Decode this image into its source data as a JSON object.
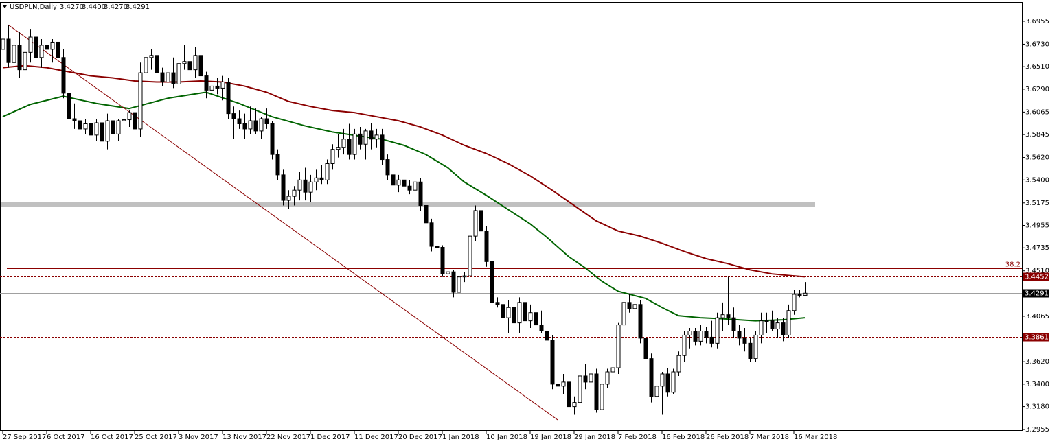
{
  "chart_data": {
    "type": "candlestick",
    "title": "USDPLN,Daily",
    "header_quote": [
      {
        "value": 3.427,
        "label": "3.4270"
      },
      {
        "value": 3.44,
        "label": "3.4400"
      },
      {
        "value": 3.427,
        "label": "3.4270"
      },
      3.4291
    ],
    "categories": [
      "27 Sep 2017",
      null,
      null,
      null,
      null,
      null,
      null,
      null,
      "6 Oct 2017",
      null,
      null,
      null,
      null,
      null,
      null,
      null,
      "16 Oct 2017",
      null,
      null,
      null,
      null,
      null,
      null,
      null,
      "25 Oct 2017",
      null,
      null,
      null,
      null,
      null,
      null,
      null,
      "3 Nov 2017",
      null,
      null,
      null,
      null,
      null,
      null,
      null,
      "13 Nov 2017",
      null,
      null,
      null,
      null,
      null,
      null,
      null,
      "22 Nov 2017",
      null,
      null,
      null,
      null,
      null,
      null,
      null,
      "1 Dec 2017",
      null,
      null,
      null,
      null,
      null,
      null,
      null,
      "11 Dec 2017",
      null,
      null,
      null,
      null,
      null,
      null,
      null,
      "20 Dec 2017",
      null,
      null,
      null,
      null,
      null,
      null,
      null,
      "1 Jan 2018",
      null,
      null,
      null,
      null,
      null,
      null,
      null,
      "10 Jan 2018",
      null,
      null,
      null,
      null,
      null,
      null,
      null,
      "19 Jan 2018",
      null,
      null,
      null,
      null,
      null,
      null,
      null,
      "29 Jan 2018",
      null,
      null,
      null,
      null,
      null,
      null,
      null,
      "7 Feb 2018",
      null,
      null,
      null,
      null,
      null,
      null,
      null,
      "16 Feb 2018",
      null,
      null,
      null,
      null,
      null,
      null,
      null,
      "26 Feb 2018",
      null,
      null,
      null,
      null,
      null,
      null,
      null,
      "7 Mar 2018",
      null,
      null,
      null,
      null,
      null,
      null,
      null,
      "16 Mar 2018",
      null,
      null
    ],
    "ohlc": [
      [
        3.668,
        3.688,
        3.64,
        3.678
      ],
      [
        3.678,
        3.692,
        3.65,
        3.655
      ],
      [
        3.655,
        3.68,
        3.648,
        3.672
      ],
      [
        3.672,
        3.685,
        3.64,
        3.648
      ],
      [
        3.648,
        3.672,
        3.642,
        3.665
      ],
      [
        3.665,
        3.688,
        3.655,
        3.68
      ],
      [
        3.68,
        3.686,
        3.655,
        3.66
      ],
      [
        3.66,
        3.678,
        3.65,
        3.672
      ],
      [
        3.672,
        3.694,
        3.66,
        3.668
      ],
      [
        3.668,
        3.678,
        3.655,
        3.675
      ],
      [
        3.675,
        3.68,
        3.65,
        3.66
      ],
      [
        3.66,
        3.668,
        3.62,
        3.625
      ],
      [
        3.625,
        3.632,
        3.595,
        3.6
      ],
      [
        3.6,
        3.615,
        3.59,
        3.598
      ],
      [
        3.598,
        3.606,
        3.578,
        3.59
      ],
      [
        3.59,
        3.6,
        3.585,
        3.595
      ],
      [
        3.595,
        3.602,
        3.578,
        3.584
      ],
      [
        3.584,
        3.6,
        3.578,
        3.596
      ],
      [
        3.596,
        3.602,
        3.574,
        3.578
      ],
      [
        3.578,
        3.605,
        3.57,
        3.598
      ],
      [
        3.598,
        3.605,
        3.575,
        3.585
      ],
      [
        3.585,
        3.6,
        3.578,
        3.598
      ],
      [
        3.598,
        3.61,
        3.59,
        3.599
      ],
      [
        3.599,
        3.608,
        3.592,
        3.606
      ],
      [
        3.606,
        3.615,
        3.585,
        3.59
      ],
      [
        3.59,
        3.655,
        3.582,
        3.645
      ],
      [
        3.645,
        3.672,
        3.64,
        3.66
      ],
      [
        3.66,
        3.668,
        3.648,
        3.662
      ],
      [
        3.662,
        3.664,
        3.64,
        3.645
      ],
      [
        3.645,
        3.65,
        3.632,
        3.636
      ],
      [
        3.636,
        3.655,
        3.628,
        3.645
      ],
      [
        3.645,
        3.66,
        3.63,
        3.634
      ],
      [
        3.634,
        3.66,
        3.63,
        3.654
      ],
      [
        3.654,
        3.672,
        3.648,
        3.656
      ],
      [
        3.656,
        3.666,
        3.644,
        3.648
      ],
      [
        3.648,
        3.67,
        3.64,
        3.662
      ],
      [
        3.662,
        3.668,
        3.64,
        3.642
      ],
      [
        3.642,
        3.646,
        3.62,
        3.628
      ],
      [
        3.628,
        3.64,
        3.62,
        3.632
      ],
      [
        3.632,
        3.64,
        3.624,
        3.63
      ],
      [
        3.63,
        3.642,
        3.618,
        3.636
      ],
      [
        3.636,
        3.64,
        3.6,
        3.605
      ],
      [
        3.605,
        3.612,
        3.58,
        3.6
      ],
      [
        3.6,
        3.608,
        3.59,
        3.595
      ],
      [
        3.595,
        3.605,
        3.58,
        3.59
      ],
      [
        3.59,
        3.612,
        3.585,
        3.598
      ],
      [
        3.598,
        3.61,
        3.585,
        3.588
      ],
      [
        3.588,
        3.602,
        3.58,
        3.6
      ],
      [
        3.6,
        3.61,
        3.59,
        3.595
      ],
      [
        3.595,
        3.598,
        3.56,
        3.565
      ],
      [
        3.565,
        3.57,
        3.54,
        3.545
      ],
      [
        3.545,
        3.55,
        3.515,
        3.52
      ],
      [
        3.52,
        3.53,
        3.512,
        3.524
      ],
      [
        3.524,
        3.534,
        3.515,
        3.53
      ],
      [
        3.53,
        3.548,
        3.52,
        3.54
      ],
      [
        3.54,
        3.552,
        3.52,
        3.528
      ],
      [
        3.528,
        3.545,
        3.518,
        3.538
      ],
      [
        3.538,
        3.55,
        3.53,
        3.542
      ],
      [
        3.542,
        3.555,
        3.536,
        3.54
      ],
      [
        3.54,
        3.56,
        3.536,
        3.556
      ],
      [
        3.556,
        3.575,
        3.55,
        3.57
      ],
      [
        3.57,
        3.585,
        3.562,
        3.572
      ],
      [
        3.572,
        3.59,
        3.565,
        3.58
      ],
      [
        3.58,
        3.595,
        3.56,
        3.565
      ],
      [
        3.565,
        3.59,
        3.56,
        3.585
      ],
      [
        3.585,
        3.592,
        3.57,
        3.575
      ],
      [
        3.575,
        3.59,
        3.56,
        3.588
      ],
      [
        3.588,
        3.596,
        3.57,
        3.58
      ],
      [
        3.58,
        3.59,
        3.572,
        3.584
      ],
      [
        3.584,
        3.59,
        3.555,
        3.56
      ],
      [
        3.56,
        3.565,
        3.54,
        3.545
      ],
      [
        3.545,
        3.55,
        3.525,
        3.535
      ],
      [
        3.535,
        3.545,
        3.528,
        3.54
      ],
      [
        3.54,
        3.545,
        3.53,
        3.534
      ],
      [
        3.534,
        3.54,
        3.526,
        3.53
      ],
      [
        3.53,
        3.545,
        3.528,
        3.538
      ],
      [
        3.538,
        3.542,
        3.51,
        3.515
      ],
      [
        3.515,
        3.52,
        3.495,
        3.498
      ],
      [
        3.498,
        3.502,
        3.47,
        3.475
      ],
      [
        3.475,
        3.48,
        3.47,
        3.474
      ],
      [
        3.474,
        3.476,
        3.445,
        3.448
      ],
      [
        3.448,
        3.455,
        3.44,
        3.45
      ],
      [
        3.45,
        3.452,
        3.425,
        3.43
      ],
      [
        3.43,
        3.45,
        3.425,
        3.445
      ],
      [
        3.445,
        3.45,
        3.44,
        3.446
      ],
      [
        3.446,
        3.49,
        3.44,
        3.485
      ],
      [
        3.485,
        3.515,
        3.48,
        3.51
      ],
      [
        3.51,
        3.515,
        3.485,
        3.49
      ],
      [
        3.49,
        3.495,
        3.455,
        3.46
      ],
      [
        3.46,
        3.462,
        3.415,
        3.42
      ],
      [
        3.42,
        3.425,
        3.415,
        3.418
      ],
      [
        3.418,
        3.428,
        3.4,
        3.405
      ],
      [
        3.405,
        3.422,
        3.39,
        3.415
      ],
      [
        3.415,
        3.42,
        3.395,
        3.4
      ],
      [
        3.4,
        3.425,
        3.39,
        3.42
      ],
      [
        3.42,
        3.425,
        3.398,
        3.402
      ],
      [
        3.402,
        3.418,
        3.395,
        3.41
      ],
      [
        3.41,
        3.415,
        3.395,
        3.398
      ],
      [
        3.398,
        3.412,
        3.39,
        3.392
      ],
      [
        3.392,
        3.395,
        3.38,
        3.383
      ],
      [
        3.383,
        3.388,
        3.335,
        3.34
      ],
      [
        3.34,
        3.345,
        3.305,
        3.338
      ],
      [
        3.338,
        3.35,
        3.33,
        3.342
      ],
      [
        3.342,
        3.35,
        3.312,
        3.318
      ],
      [
        3.318,
        3.328,
        3.31,
        3.322
      ],
      [
        3.322,
        3.352,
        3.318,
        3.348
      ],
      [
        3.348,
        3.36,
        3.335,
        3.342
      ],
      [
        3.342,
        3.358,
        3.33,
        3.35
      ],
      [
        3.35,
        3.355,
        3.312,
        3.315
      ],
      [
        3.315,
        3.345,
        3.312,
        3.34
      ],
      [
        3.34,
        3.355,
        3.336,
        3.352
      ],
      [
        3.352,
        3.362,
        3.345,
        3.356
      ],
      [
        3.356,
        3.4,
        3.35,
        3.398
      ],
      [
        3.398,
        3.425,
        3.392,
        3.42
      ],
      [
        3.42,
        3.428,
        3.41,
        3.414
      ],
      [
        3.414,
        3.43,
        3.408,
        3.418
      ],
      [
        3.418,
        3.422,
        3.38,
        3.385
      ],
      [
        3.385,
        3.392,
        3.36,
        3.365
      ],
      [
        3.365,
        3.37,
        3.322,
        3.328
      ],
      [
        3.328,
        3.34,
        3.318,
        3.338
      ],
      [
        3.338,
        3.352,
        3.31,
        3.35
      ],
      [
        3.35,
        3.356,
        3.328,
        3.332
      ],
      [
        3.332,
        3.355,
        3.33,
        3.352
      ],
      [
        3.352,
        3.372,
        3.348,
        3.368
      ],
      [
        3.368,
        3.392,
        3.362,
        3.388
      ],
      [
        3.388,
        3.395,
        3.375,
        3.392
      ],
      [
        3.392,
        3.395,
        3.378,
        3.382
      ],
      [
        3.382,
        3.398,
        3.378,
        3.392
      ],
      [
        3.392,
        3.396,
        3.38,
        3.386
      ],
      [
        3.386,
        3.402,
        3.376,
        3.38
      ],
      [
        3.38,
        3.41,
        3.375,
        3.405
      ],
      [
        3.405,
        3.42,
        3.392,
        3.408
      ],
      [
        3.408,
        3.445,
        3.398,
        3.405
      ],
      [
        3.405,
        3.415,
        3.385,
        3.392
      ],
      [
        3.392,
        3.398,
        3.378,
        3.385
      ],
      [
        3.385,
        3.395,
        3.372,
        3.38
      ],
      [
        3.38,
        3.385,
        3.362,
        3.365
      ],
      [
        3.365,
        3.392,
        3.362,
        3.388
      ],
      [
        3.388,
        3.41,
        3.38,
        3.402
      ],
      [
        3.402,
        3.41,
        3.39,
        3.402
      ],
      [
        3.402,
        3.412,
        3.392,
        3.394
      ],
      [
        3.394,
        3.405,
        3.385,
        3.4
      ],
      [
        3.4,
        3.405,
        3.382,
        3.388
      ],
      [
        3.388,
        3.418,
        3.385,
        3.412
      ],
      [
        3.412,
        3.432,
        3.408,
        3.428
      ],
      [
        3.428,
        3.432,
        3.425,
        3.427
      ],
      [
        3.427,
        3.44,
        3.427,
        3.4291
      ]
    ],
    "up_color": "#ffffff",
    "down_color": "#000000",
    "lines": [
      {
        "color": "#8b0000",
        "x": [
          0,
          4,
          8,
          12,
          16,
          20,
          24,
          28,
          32,
          36,
          40,
          44,
          48,
          52,
          56,
          60,
          64,
          68,
          72,
          76,
          80,
          84,
          88,
          92,
          96,
          100,
          104,
          108,
          112,
          116,
          120,
          124,
          128,
          132,
          136,
          140,
          144,
          146
        ],
        "values": [
          3.65,
          3.652,
          3.65,
          3.646,
          3.642,
          3.64,
          3.637,
          3.636,
          3.636,
          3.637,
          3.636,
          3.632,
          3.626,
          3.617,
          3.612,
          3.608,
          3.606,
          3.602,
          3.598,
          3.592,
          3.584,
          3.574,
          3.566,
          3.556,
          3.544,
          3.53,
          3.515,
          3.5,
          3.49,
          3.485,
          3.478,
          3.47,
          3.463,
          3.458,
          3.452,
          3.448,
          3.446,
          3.4452
        ]
      },
      {
        "color": "#006400",
        "x": [
          0,
          5,
          11,
          17,
          23,
          30,
          37,
          43,
          49,
          55,
          60,
          65,
          69,
          73,
          77,
          81,
          84,
          88,
          92,
          96,
          99,
          103,
          106,
          109,
          112,
          117,
          120,
          123,
          127,
          131,
          137,
          142,
          146
        ],
        "values": [
          3.602,
          3.614,
          3.622,
          3.615,
          3.61,
          3.62,
          3.626,
          3.615,
          3.602,
          3.593,
          3.587,
          3.583,
          3.58,
          3.574,
          3.565,
          3.552,
          3.538,
          3.525,
          3.511,
          3.497,
          3.484,
          3.465,
          3.454,
          3.441,
          3.431,
          3.424,
          3.415,
          3.407,
          3.405,
          3.404,
          3.402,
          3.403,
          3.405
        ]
      },
      {
        "color": "#8b0000",
        "x": [
          1,
          101
        ],
        "values": [
          3.692,
          3.305
        ]
      }
    ],
    "zone": {
      "value": 3.516,
      "color": "#c0c0c0"
    },
    "levels": [
      {
        "value": 3.4535,
        "color": "#8b0000",
        "dashed": false,
        "label": "38.2"
      },
      {
        "value": 3.4452,
        "color": "#8b0000",
        "dashed": true,
        "tag": true,
        "tag_color": "#8b0000"
      },
      {
        "value": 3.4291,
        "color": "#a0a0a0",
        "dashed": false,
        "tag": true,
        "tag_color": "#000000"
      },
      {
        "value": 3.3861,
        "color": "#8b0000",
        "dashed": true,
        "tag": true,
        "tag_color": "#8b0000"
      }
    ],
    "ylim": [
      3.2942,
      3.7143
    ],
    "yticks": [
      3.6955,
      {
        "value": 3.673,
        "label": "3.6730"
      },
      {
        "value": 3.651,
        "label": "3.6510"
      },
      {
        "value": 3.629,
        "label": "3.6290"
      },
      3.6065,
      3.5845,
      {
        "value": 3.562,
        "label": "3.5620"
      },
      {
        "value": 3.54,
        "label": "3.5400"
      },
      3.5175,
      3.4955,
      3.4735,
      {
        "value": 3.451,
        "label": "3.4510"
      },
      {
        "value": 3.4065,
        "label": "3.4065"
      },
      {
        "value": 3.362,
        "label": "3.3620"
      },
      {
        "value": 3.34,
        "label": "3.3400"
      },
      {
        "value": 3.318,
        "label": "3.3180"
      },
      3.2955
    ]
  }
}
